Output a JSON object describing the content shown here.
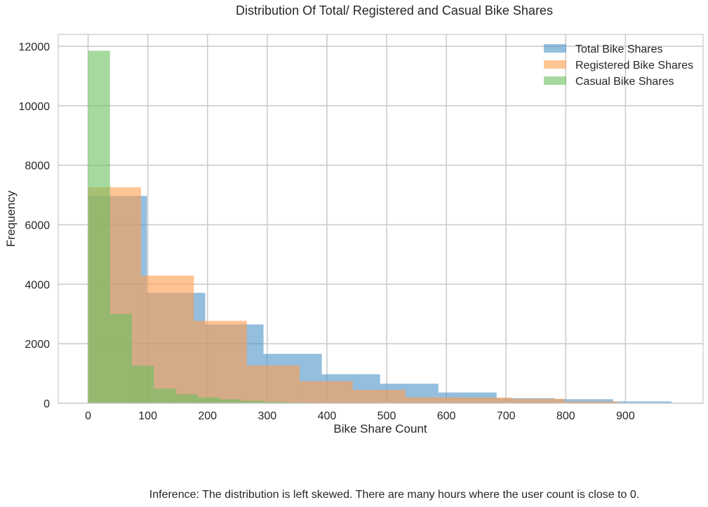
{
  "chart_data": {
    "type": "histogram",
    "title": "Distribution Of Total/ Registered and Casual Bike Shares",
    "xlabel": "Bike Share Count",
    "ylabel": "Frequency",
    "xlim": [
      -50,
      1030
    ],
    "ylim": [
      0,
      12400
    ],
    "xticks": [
      0,
      100,
      200,
      300,
      400,
      500,
      600,
      700,
      800,
      900
    ],
    "yticks": [
      0,
      2000,
      4000,
      6000,
      8000,
      10000,
      12000
    ],
    "grid": true,
    "legend_position": "top-right",
    "series": [
      {
        "name": "Total Bike Shares",
        "color": "#4c93c8",
        "bin_edges": [
          1,
          98.6,
          196.2,
          293.8,
          391.4,
          489,
          586.6,
          684.2,
          781.8,
          879.4,
          977
        ],
        "counts": [
          6970,
          3710,
          2650,
          1660,
          975,
          655,
          360,
          170,
          135,
          60
        ]
      },
      {
        "name": "Registered Bike Shares",
        "color": "#ff9c4d",
        "bin_edges": [
          0,
          88.6,
          177.2,
          265.8,
          354.4,
          443,
          531.6,
          620.2,
          708.8,
          797.4,
          886
        ],
        "counts": [
          7260,
          4290,
          2770,
          1270,
          740,
          450,
          200,
          190,
          150,
          60
        ]
      },
      {
        "name": "Casual Bike Shares",
        "color": "#6abf5e",
        "bin_edges": [
          0,
          36.7,
          73.4,
          110.1,
          146.8,
          183.5,
          220.2,
          256.9,
          293.6,
          330.3,
          367
        ],
        "counts": [
          11850,
          3000,
          1260,
          490,
          300,
          190,
          130,
          80,
          50,
          30
        ]
      }
    ]
  },
  "caption": "Inference: The distribution is left skewed. There are many hours where the user count is close to 0."
}
